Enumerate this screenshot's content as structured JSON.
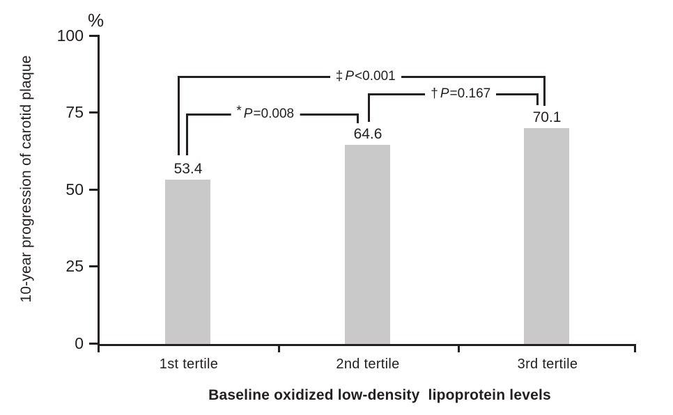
{
  "figure": {
    "background": "#ffffff",
    "ink_color": "#231f20",
    "bar_color": "#c9c9c9"
  },
  "chart_data": {
    "type": "bar",
    "title": "",
    "categories": [
      "1st tertile",
      "2nd tertile",
      "3rd tertile"
    ],
    "values": [
      53.4,
      64.6,
      70.1
    ],
    "xlabel": "Baseline oxidized low-density  lipoprotein levels",
    "ylabel": "10-year progression of carotid plaque",
    "y_unit": "%",
    "ylim": [
      0,
      100
    ],
    "yticks": [
      "100",
      "75",
      "50",
      "25",
      "0"
    ],
    "grid": false,
    "legend_position": "none",
    "annotations": [
      {
        "marker": "‡",
        "p": "P",
        "value": "<0.001",
        "compares": [
          "1st tertile",
          "3rd tertile"
        ]
      },
      {
        "marker": "*",
        "p": "P",
        "value": "=0.008",
        "compares": [
          "1st tertile",
          "2nd tertile"
        ]
      },
      {
        "marker": "†",
        "p": "P",
        "value": "=0.167",
        "compares": [
          "2nd tertile",
          "3rd tertile"
        ]
      }
    ]
  }
}
